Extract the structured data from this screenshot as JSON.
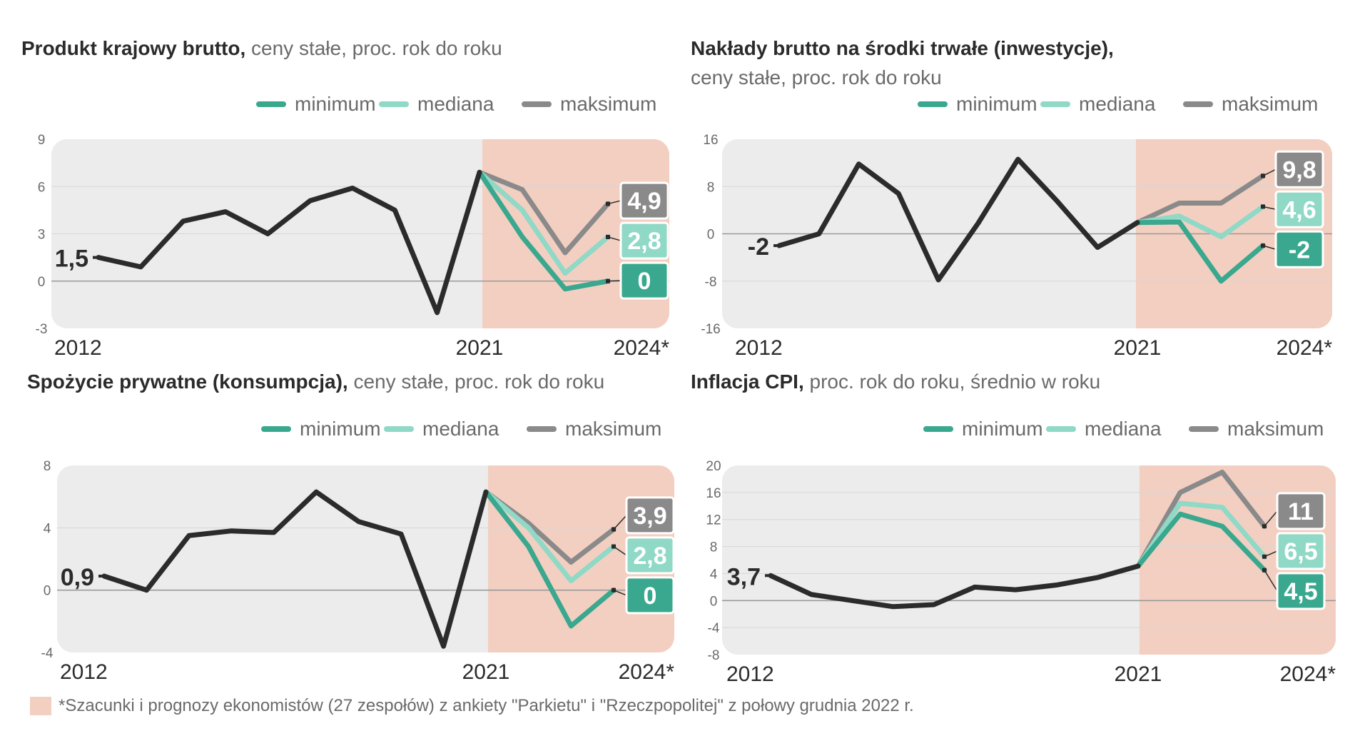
{
  "colors": {
    "history": "#2b2b2b",
    "minimum": "#3aa88e",
    "mediana": "#8fd9c6",
    "maksimum": "#8a8a8a",
    "panel": "#ececec",
    "forecast": "#f3cfc1",
    "text": "#6a6a6a",
    "title": "#2b2b2b"
  },
  "legend_labels": {
    "minimum": "minimum",
    "mediana": "mediana",
    "maksimum": "maksimum"
  },
  "footnote": "*Szacunki i prognozy ekonomistów (27 zespołów) z ankiety \"Parkietu\" i \"Rzeczpopolitej\" z połowy grudnia 2022 r.",
  "chart_data": [
    {
      "id": "pkb",
      "type": "line",
      "title_bold": "Produkt krajowy brutto,",
      "title_rest": " ceny stałe, proc. rok do roku",
      "title_line2": "",
      "ylim": [
        -3,
        9
      ],
      "yticks": [
        "9",
        "6",
        "3",
        "0",
        "-3"
      ],
      "x_start_label": "2012",
      "x_mid_label": "2021",
      "x_end_label": "2024*",
      "history": [
        1.5,
        0.9,
        3.8,
        4.4,
        3.0,
        5.1,
        5.9,
        4.5,
        -2.0,
        6.9
      ],
      "series": [
        {
          "name": "minimum",
          "values": [
            6.9,
            2.8,
            -0.5,
            0.0
          ],
          "label": "0"
        },
        {
          "name": "mediana",
          "values": [
            6.9,
            4.5,
            0.5,
            2.8
          ],
          "label": "2,8"
        },
        {
          "name": "maksimum",
          "values": [
            6.9,
            5.8,
            1.8,
            4.9
          ],
          "label": "4,9"
        }
      ],
      "start_label": "1,5"
    },
    {
      "id": "inwestycje",
      "type": "line",
      "title_bold": "Nakłady brutto na środki trwałe (inwestycje),",
      "title_rest": "",
      "title_line2": "ceny stałe, proc. rok do roku",
      "ylim": [
        -16,
        16
      ],
      "yticks": [
        "16",
        "8",
        "0",
        "-8",
        "-16"
      ],
      "x_start_label": "2012",
      "x_mid_label": "2021",
      "x_end_label": "2024*",
      "history": [
        -2.0,
        0.0,
        11.8,
        6.8,
        -7.8,
        1.8,
        12.6,
        5.4,
        -2.3,
        1.9
      ],
      "series": [
        {
          "name": "minimum",
          "values": [
            1.9,
            2.0,
            -8.0,
            -2.0
          ],
          "label": "-2"
        },
        {
          "name": "mediana",
          "values": [
            1.9,
            3.0,
            -0.5,
            4.6
          ],
          "label": "4,6"
        },
        {
          "name": "maksimum",
          "values": [
            1.9,
            5.2,
            5.2,
            9.8
          ],
          "label": "9,8"
        }
      ],
      "start_label": "-2"
    },
    {
      "id": "konsumpcja",
      "type": "line",
      "title_bold": "Spożycie prywatne (konsumpcja),",
      "title_rest": " ceny stałe, proc. rok do roku",
      "title_line2": "",
      "ylim": [
        -4,
        8
      ],
      "yticks": [
        "8",
        "4",
        "0",
        "-4"
      ],
      "x_start_label": "2012",
      "x_mid_label": "2021",
      "x_end_label": "2024*",
      "history": [
        0.9,
        0.0,
        3.5,
        3.8,
        3.7,
        6.3,
        4.4,
        3.6,
        -3.6,
        6.3
      ],
      "series": [
        {
          "name": "minimum",
          "values": [
            6.3,
            2.8,
            -2.3,
            0.0
          ],
          "label": "0"
        },
        {
          "name": "mediana",
          "values": [
            6.3,
            4.0,
            0.6,
            2.8
          ],
          "label": "2,8"
        },
        {
          "name": "maksimum",
          "values": [
            6.3,
            4.3,
            1.8,
            3.9
          ],
          "label": "3,9"
        }
      ],
      "start_label": "0,9"
    },
    {
      "id": "inflacja",
      "type": "line",
      "title_bold": "Inflacja CPI,",
      "title_rest": " proc. rok do roku, średnio w roku",
      "title_line2": "",
      "ylim": [
        -8,
        20
      ],
      "yticks": [
        "20",
        "16",
        "12",
        "8",
        "4",
        "0",
        "-4",
        "-8"
      ],
      "x_start_label": "2012",
      "x_mid_label": "2021",
      "x_end_label": "2024*",
      "history": [
        3.7,
        0.9,
        0.0,
        -0.9,
        -0.6,
        2.0,
        1.6,
        2.3,
        3.4,
        5.1
      ],
      "series": [
        {
          "name": "minimum",
          "values": [
            5.1,
            12.8,
            11.0,
            4.5
          ],
          "label": "4,5"
        },
        {
          "name": "mediana",
          "values": [
            5.1,
            14.4,
            13.8,
            6.5
          ],
          "label": "6,5"
        },
        {
          "name": "maksimum",
          "values": [
            5.1,
            16.0,
            19.0,
            11.0
          ],
          "label": "11"
        }
      ],
      "start_label": "3,7"
    }
  ]
}
